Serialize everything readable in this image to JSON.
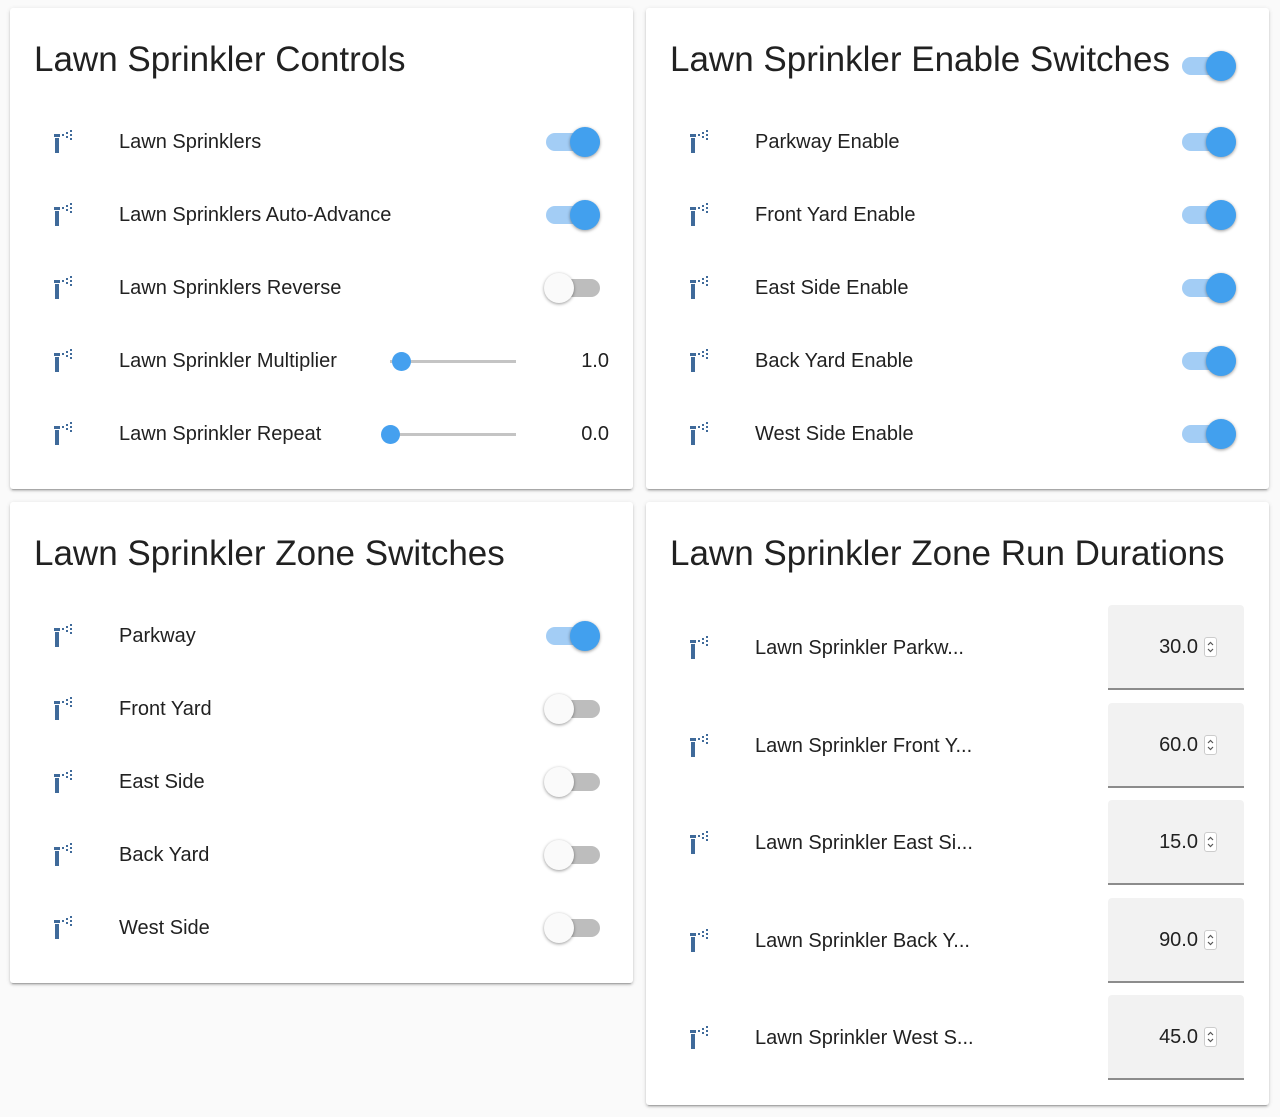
{
  "colors": {
    "accent": "#42a0ee",
    "icon": "#3f6a9a"
  },
  "cards": [
    {
      "title": "Lawn Sprinkler Controls",
      "rows": [
        {
          "icon": "sprinkler-icon",
          "label": "Lawn Sprinklers",
          "type": "toggle",
          "on": true
        },
        {
          "icon": "sprinkler-icon",
          "label": "Lawn Sprinklers Auto-Advance",
          "type": "toggle",
          "on": true
        },
        {
          "icon": "sprinkler-icon",
          "label": "Lawn Sprinklers Reverse",
          "type": "toggle",
          "on": false
        },
        {
          "icon": "sprinkler-icon",
          "label": "Lawn Sprinkler Multiplier",
          "type": "slider",
          "value": "1.0",
          "level": 0.09
        },
        {
          "icon": "sprinkler-icon",
          "label": "Lawn Sprinkler Repeat",
          "type": "slider",
          "value": "0.0",
          "level": 0
        }
      ]
    },
    {
      "title": "Lawn Sprinkler Enable Switches",
      "header_toggle_on": true,
      "rows": [
        {
          "icon": "sprinkler-icon",
          "label": "Parkway Enable",
          "type": "toggle",
          "on": true
        },
        {
          "icon": "sprinkler-icon",
          "label": "Front Yard Enable",
          "type": "toggle",
          "on": true
        },
        {
          "icon": "sprinkler-icon",
          "label": "East Side Enable",
          "type": "toggle",
          "on": true
        },
        {
          "icon": "sprinkler-icon",
          "label": "Back Yard Enable",
          "type": "toggle",
          "on": true
        },
        {
          "icon": "sprinkler-icon",
          "label": "West Side Enable",
          "type": "toggle",
          "on": true
        }
      ]
    },
    {
      "title": "Lawn Sprinkler Zone Switches",
      "rows": [
        {
          "icon": "sprinkler-icon",
          "label": "Parkway",
          "type": "toggle",
          "on": true
        },
        {
          "icon": "sprinkler-icon",
          "label": "Front Yard",
          "type": "toggle",
          "on": false
        },
        {
          "icon": "sprinkler-icon",
          "label": "East Side",
          "type": "toggle",
          "on": false
        },
        {
          "icon": "sprinkler-icon",
          "label": "Back Yard",
          "type": "toggle",
          "on": false
        },
        {
          "icon": "sprinkler-icon",
          "label": "West Side",
          "type": "toggle",
          "on": false
        }
      ]
    },
    {
      "title": "Lawn Sprinkler Zone Run Durations",
      "rows": [
        {
          "icon": "sprinkler-icon",
          "label": "Lawn Sprinkler Parkw...",
          "type": "number",
          "value": "30.0"
        },
        {
          "icon": "sprinkler-icon",
          "label": "Lawn Sprinkler Front Y...",
          "type": "number",
          "value": "60.0"
        },
        {
          "icon": "sprinkler-icon",
          "label": "Lawn Sprinkler East Si...",
          "type": "number",
          "value": "15.0"
        },
        {
          "icon": "sprinkler-icon",
          "label": "Lawn Sprinkler Back Y...",
          "type": "number",
          "value": "90.0"
        },
        {
          "icon": "sprinkler-icon",
          "label": "Lawn Sprinkler West S...",
          "type": "number",
          "value": "45.0"
        }
      ]
    }
  ]
}
